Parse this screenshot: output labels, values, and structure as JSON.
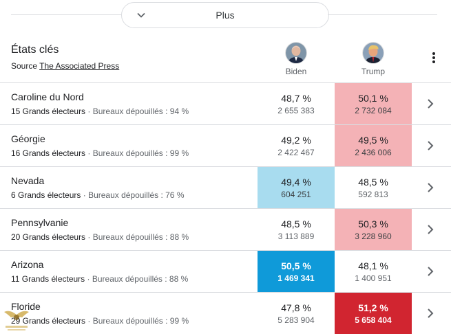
{
  "plus": {
    "label": "Plus"
  },
  "header": {
    "title": "États clés",
    "source_prefix": "Source",
    "source_link": "The Associated Press",
    "candidates": [
      {
        "name": "Biden"
      },
      {
        "name": "Trump"
      }
    ]
  },
  "colors": {
    "biden_light": "#a8dcef",
    "biden_strong": "#0f9ad9",
    "trump_light": "#f4b2b6",
    "trump_strong": "#d12530"
  },
  "rows": [
    {
      "state": "Caroline du Nord",
      "electors": "15 Grands électeurs",
      "reporting": "Bureaux dépouillés : 94 %",
      "biden_pct": "48,7 %",
      "biden_votes": "2 655 383",
      "trump_pct": "50,1 %",
      "trump_votes": "2 732 084",
      "leader": "trump",
      "called": false
    },
    {
      "state": "Géorgie",
      "electors": "16 Grands électeurs",
      "reporting": "Bureaux dépouillés : 99 %",
      "biden_pct": "49,2 %",
      "biden_votes": "2 422 467",
      "trump_pct": "49,5 %",
      "trump_votes": "2 436 006",
      "leader": "trump",
      "called": false
    },
    {
      "state": "Nevada",
      "electors": "6 Grands électeurs",
      "reporting": "Bureaux dépouillés : 76 %",
      "biden_pct": "49,4 %",
      "biden_votes": "604 251",
      "trump_pct": "48,5 %",
      "trump_votes": "592 813",
      "leader": "biden",
      "called": false
    },
    {
      "state": "Pennsylvanie",
      "electors": "20 Grands électeurs",
      "reporting": "Bureaux dépouillés : 88 %",
      "biden_pct": "48,5 %",
      "biden_votes": "3 113 889",
      "trump_pct": "50,3 %",
      "trump_votes": "3 228 960",
      "leader": "trump",
      "called": false
    },
    {
      "state": "Arizona",
      "electors": "11 Grands électeurs",
      "reporting": "Bureaux dépouillés : 88 %",
      "biden_pct": "50,5 %",
      "biden_votes": "1 469 341",
      "trump_pct": "48,1 %",
      "trump_votes": "1 400 951",
      "leader": "biden",
      "called": true
    },
    {
      "state": "Floride",
      "electors": "29 Grands électeurs",
      "reporting": "Bureaux dépouillés : 99 %",
      "biden_pct": "47,8 %",
      "biden_votes": "5 283 904",
      "trump_pct": "51,2 %",
      "trump_votes": "5 658 404",
      "leader": "trump",
      "called": true
    }
  ]
}
